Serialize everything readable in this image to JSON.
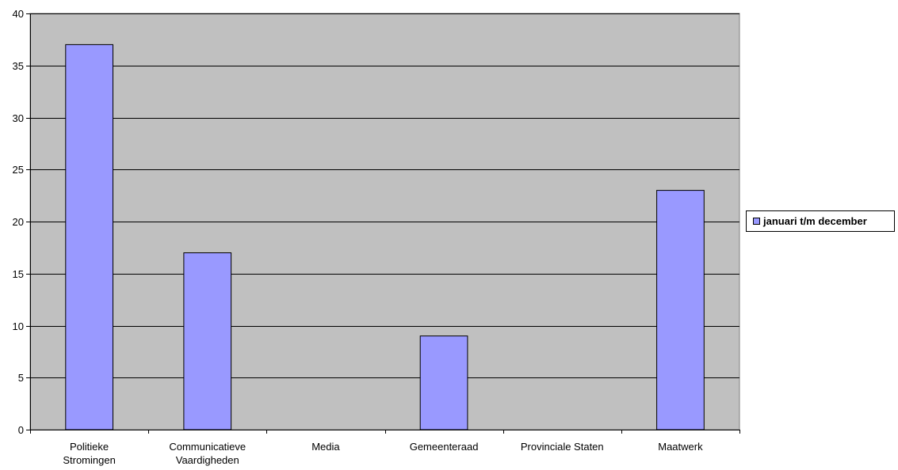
{
  "chart_data": {
    "type": "bar",
    "categories": [
      [
        "Politieke",
        "Stromingen"
      ],
      [
        "Communicatieve",
        "Vaardigheden"
      ],
      [
        "Media"
      ],
      [
        "Gemeenteraad"
      ],
      [
        "Provinciale Staten"
      ],
      [
        "Maatwerk"
      ]
    ],
    "series": [
      {
        "name": "januari t/m december",
        "values": [
          37,
          17,
          0,
          9,
          0,
          23
        ]
      }
    ],
    "y_ticks": [
      "0",
      "5",
      "10",
      "15",
      "20",
      "25",
      "30",
      "35",
      "40"
    ],
    "ylim": [
      0,
      40
    ],
    "grid": true,
    "legend_position": "right",
    "colors": {
      "plot_bg": "#c0c0c0",
      "bar_fill": "#9999ff",
      "bar_stroke": "#000000",
      "grid": "#000000"
    }
  }
}
